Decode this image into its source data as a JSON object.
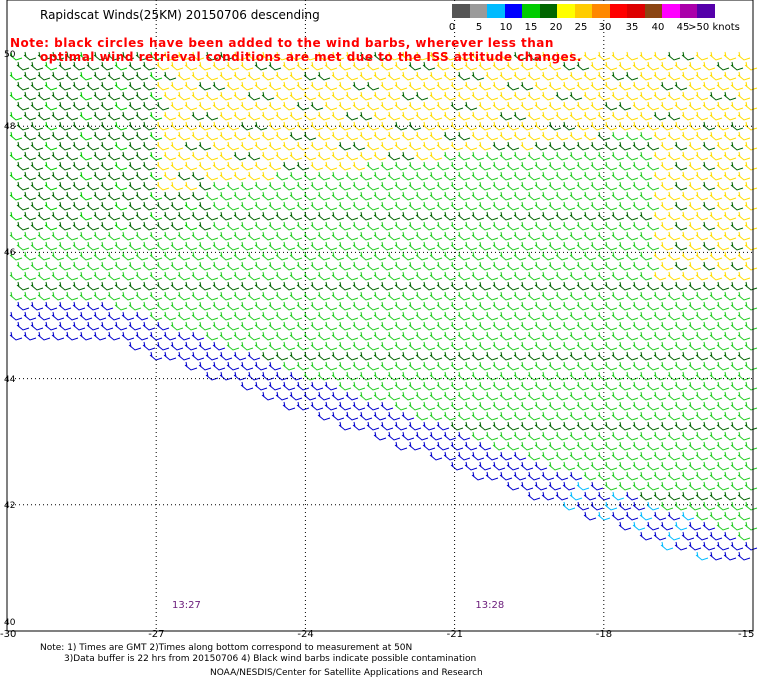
{
  "title": "Rapidscat Winds(25KM) 20150706 descending",
  "note_line1": "Note: black circles have been added to the wind barbs, wherever less than",
  "note_line2": "optimal wind retrieval conditions are met due to the ISS attitude changes.",
  "legend": {
    "colors": [
      "#555555",
      "#9a9a9a",
      "#00bbff",
      "#0000ff",
      "#00cc00",
      "#006600",
      "#ffff00",
      "#ffcc00",
      "#ff8800",
      "#ff0000",
      "#dd0000",
      "#8b4513",
      "#ff00ff",
      "#aa00aa",
      "#5500aa"
    ],
    "labels": [
      "0",
      "5",
      "10",
      "15",
      "20",
      "25",
      "30",
      "35",
      "40",
      "45",
      ">50 knots"
    ]
  },
  "map": {
    "lon_range": [
      -30,
      -15
    ],
    "lat_range": [
      40,
      50
    ],
    "lon_ticks": [
      "-30",
      "-27",
      "-24",
      "-21",
      "-18",
      "-15"
    ],
    "lat_ticks": [
      "50",
      "48",
      "46",
      "44",
      "42",
      "40"
    ],
    "grid": "dotted"
  },
  "pass_times": [
    {
      "label": "13:27",
      "lon": -26.4
    },
    {
      "label": "13:28",
      "lon": -20.3
    }
  ],
  "footer": {
    "line1": "Note: 1) Times are GMT 2)Times along bottom correspond to measurement at 50N",
    "line2": "3)Data buffer is 22 hrs from 20150706 4) Black wind barbs indicate possible contamination",
    "line3": "NOAA/NESDIS/Center for Satellite Applications and Research"
  }
}
